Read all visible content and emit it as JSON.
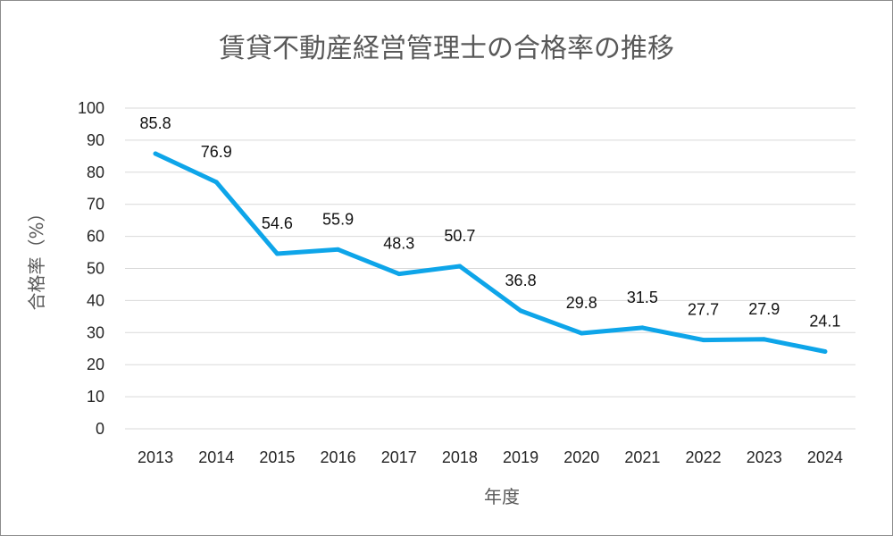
{
  "chart_data": {
    "type": "line",
    "title": "賃貸不動産経営管理士の合格率の推移",
    "xlabel": "年度",
    "ylabel": "合格率（%）",
    "categories": [
      "2013",
      "2014",
      "2015",
      "2016",
      "2017",
      "2018",
      "2019",
      "2020",
      "2021",
      "2022",
      "2023",
      "2024"
    ],
    "series": [
      {
        "values": [
          85.8,
          76.9,
          54.6,
          55.9,
          48.3,
          50.7,
          36.8,
          29.8,
          31.5,
          27.7,
          27.9,
          24.1
        ]
      }
    ],
    "ylim": [
      0,
      100
    ],
    "yticks": [
      0,
      10,
      20,
      30,
      40,
      50,
      60,
      70,
      80,
      90,
      100
    ],
    "grid": true,
    "legend": "none",
    "line_color": "#0ea5e9"
  }
}
